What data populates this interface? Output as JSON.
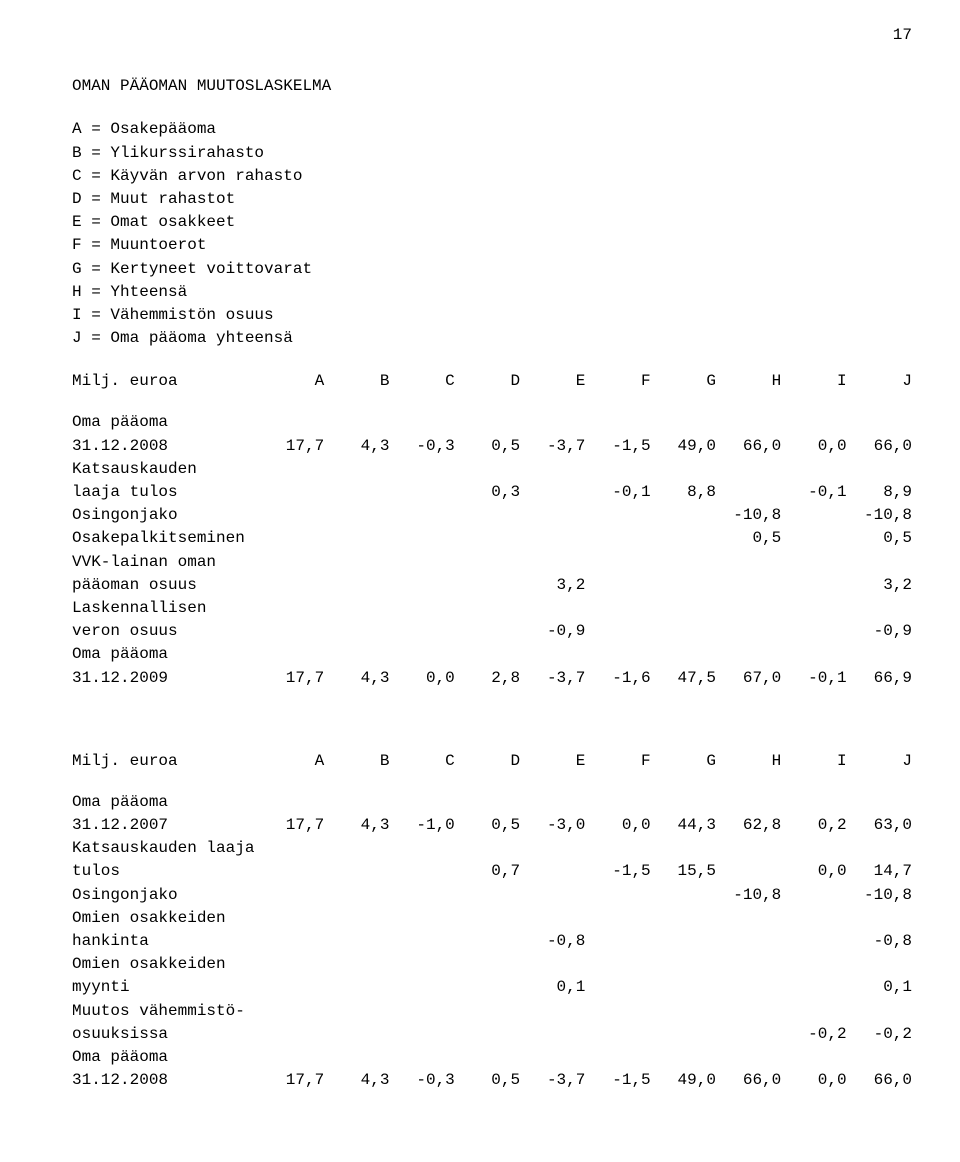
{
  "page_number": "17",
  "title": "OMAN PÄÄOMAN MUUTOSLASKELMA",
  "legend": [
    "A = Osakepääoma",
    "B = Ylikurssirahasto",
    "C = Käyvän arvon rahasto",
    "D = Muut rahastot",
    "E = Omat osakkeet",
    "F = Muuntoerot",
    "G = Kertyneet voittovarat",
    "H = Yhteensä",
    "I = Vähemmistön osuus",
    "J = Oma pääoma yhteensä"
  ],
  "columns": [
    "A",
    "B",
    "C",
    "D",
    "E",
    "F",
    "G",
    "H",
    "I",
    "J"
  ],
  "header_label": "Milj. euroa",
  "t1": {
    "rows": [
      {
        "label": "Oma pääoma\n31.12.2008",
        "vals": [
          "17,7",
          "4,3",
          "-0,3",
          "0,5",
          "-3,7",
          "-1,5",
          "49,0",
          "66,0",
          "0,0",
          "66,0"
        ]
      },
      {
        "label": "Katsauskauden\nlaaja tulos",
        "vals": [
          "",
          "",
          "",
          "0,3",
          "",
          "-0,1",
          "8,8",
          "",
          "-0,1",
          "8,9"
        ]
      },
      {
        "label": "Osingonjako",
        "vals": [
          "",
          "",
          "",
          "",
          "",
          "",
          "",
          "-10,8",
          "",
          "-10,8"
        ]
      },
      {
        "label": "Osakepalkitseminen",
        "vals": [
          "",
          "",
          "",
          "",
          "",
          "",
          "",
          "0,5",
          "",
          "0,5"
        ]
      },
      {
        "label": "VVK-lainan oman\npääoman osuus",
        "vals": [
          "",
          "",
          "",
          "",
          "3,2",
          "",
          "",
          "",
          "",
          "3,2"
        ]
      },
      {
        "label": "Laskennallisen\nveron osuus",
        "vals": [
          "",
          "",
          "",
          "",
          "-0,9",
          "",
          "",
          "",
          "",
          "-0,9"
        ]
      },
      {
        "label": "Oma pääoma\n31.12.2009",
        "vals": [
          "17,7",
          "4,3",
          "0,0",
          "2,8",
          "-3,7",
          "-1,6",
          "47,5",
          "67,0",
          "-0,1",
          "66,9"
        ]
      }
    ]
  },
  "t2": {
    "rows": [
      {
        "label": "Oma pääoma\n31.12.2007",
        "vals": [
          "17,7",
          "4,3",
          "-1,0",
          "0,5",
          "-3,0",
          "0,0",
          "44,3",
          "62,8",
          "0,2",
          "63,0"
        ]
      },
      {
        "label": "Katsauskauden laaja\ntulos",
        "vals": [
          "",
          "",
          "",
          "0,7",
          "",
          "-1,5",
          "15,5",
          "",
          "0,0",
          "14,7"
        ]
      },
      {
        "label": "Osingonjako",
        "vals": [
          "",
          "",
          "",
          "",
          "",
          "",
          "",
          "-10,8",
          "",
          "-10,8"
        ]
      },
      {
        "label": "Omien osakkeiden\nhankinta",
        "vals": [
          "",
          "",
          "",
          "",
          "-0,8",
          "",
          "",
          "",
          "",
          "-0,8"
        ]
      },
      {
        "label": "Omien osakkeiden\nmyynti",
        "vals": [
          "",
          "",
          "",
          "",
          "0,1",
          "",
          "",
          "",
          "",
          "0,1"
        ]
      },
      {
        "label": "Muutos vähemmistö-\nosuuksissa",
        "vals": [
          "",
          "",
          "",
          "",
          "",
          "",
          "",
          "",
          "-0,2",
          "-0,2"
        ]
      },
      {
        "label": "Oma pääoma\n31.12.2008",
        "vals": [
          "17,7",
          "4,3",
          "-0,3",
          "0,5",
          "-3,7",
          "-1,5",
          "49,0",
          "66,0",
          "0,0",
          "66,0"
        ]
      }
    ]
  }
}
